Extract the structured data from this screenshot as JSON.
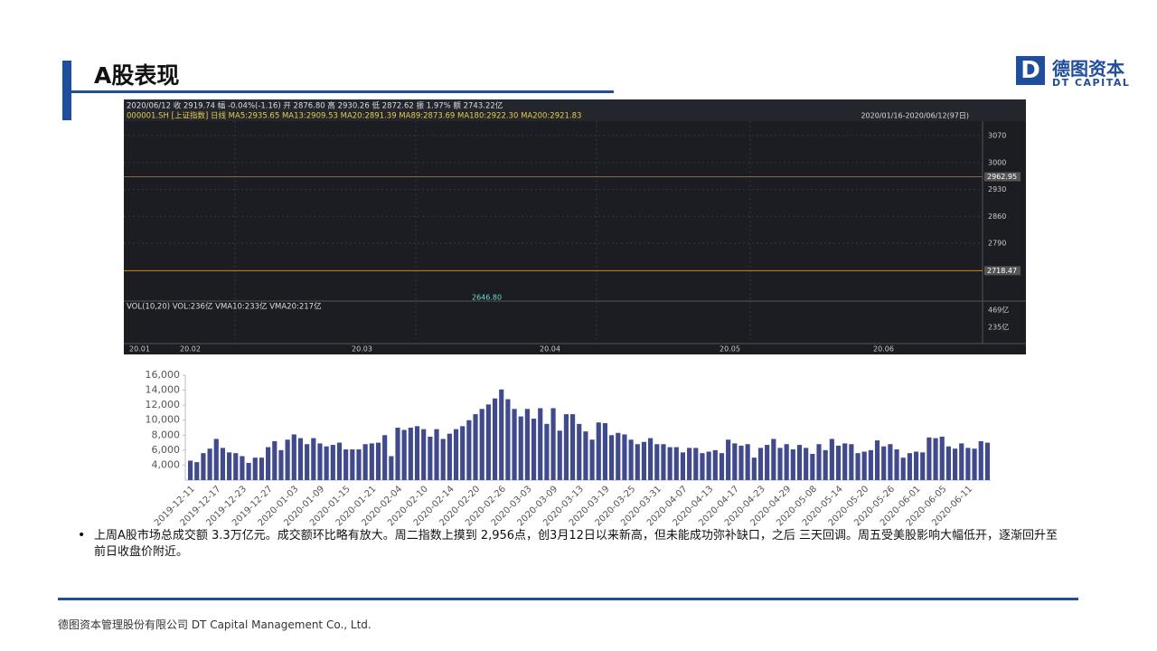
{
  "header": {
    "title": "A股表现",
    "logo_cn": "德图资本",
    "logo_en": "DT CAPITAL"
  },
  "kline_panel": {
    "quote": "2020/06/12 收 2919.74 幅 -0.04%(-1.16) 开 2876.80 高 2930.26 低 2872.62 振 1.97% 额 2743.22亿",
    "ma_line": "000001.SH [上证指数] 日线 MA5:2935.65 MA13:2909.53 MA20:2891.39 MA89:2873.69 MA180:2922.30 MA200:2921.83",
    "range": "2020/01/16-2020/06/12(97日)",
    "price_ticks": [
      3070,
      3000,
      2930,
      2860,
      2790
    ],
    "levels": [
      {
        "value": 2962.95,
        "label": "2962.95"
      },
      {
        "value": 2718.47,
        "label": "2718.47"
      }
    ],
    "low_label": "2646.80",
    "vol_line": "VOL(10,20) VOL:236亿 VMA10:233亿 VMA20:217亿",
    "vol_ticks": [
      "469亿",
      "235亿"
    ],
    "dates": [
      "20.01",
      "20.02",
      "20.03",
      "20.04",
      "20.05",
      "20.06"
    ]
  },
  "chart_data": {
    "type": "bar",
    "color": "#404a8c",
    "categories": [
      "2019-12-11",
      null,
      null,
      null,
      "2019-12-17",
      null,
      null,
      null,
      "2019-12-23",
      null,
      null,
      null,
      "2019-12-27",
      null,
      null,
      null,
      "2020-01-03",
      null,
      null,
      null,
      "2020-01-09",
      null,
      null,
      null,
      "2020-01-15",
      null,
      null,
      null,
      "2020-01-21",
      null,
      null,
      null,
      "2020-02-04",
      null,
      null,
      null,
      "2020-02-10",
      null,
      null,
      null,
      "2020-02-14",
      null,
      null,
      null,
      "2020-02-20",
      null,
      null,
      null,
      "2020-02-26",
      null,
      null,
      null,
      "2020-03-03",
      null,
      null,
      null,
      "2020-03-09",
      null,
      null,
      null,
      "2020-03-13",
      null,
      null,
      null,
      "2020-03-19",
      null,
      null,
      null,
      "2020-03-25",
      null,
      null,
      null,
      "2020-03-31",
      null,
      null,
      null,
      "2020-04-07",
      null,
      null,
      null,
      "2020-04-13",
      null,
      null,
      null,
      "2020-04-17",
      null,
      null,
      null,
      "2020-04-23",
      null,
      null,
      null,
      "2020-04-29",
      null,
      null,
      null,
      "2020-05-08",
      null,
      null,
      null,
      "2020-05-14",
      null,
      null,
      null,
      "2020-05-20",
      null,
      null,
      null,
      "2020-05-26",
      null,
      null,
      null,
      "2020-06-01",
      null,
      null,
      null,
      "2020-06-05",
      null,
      null,
      null,
      "2020-06-11",
      null,
      null,
      null
    ],
    "values": [
      4600,
      4400,
      5600,
      6200,
      7500,
      6300,
      5700,
      5600,
      5200,
      4300,
      5000,
      5000,
      6400,
      7200,
      6000,
      7400,
      8100,
      7600,
      6800,
      7600,
      6900,
      6500,
      6700,
      7000,
      6100,
      6100,
      6100,
      6800,
      6900,
      7000,
      8000,
      5200,
      9000,
      8700,
      9000,
      9200,
      8800,
      7800,
      8800,
      7500,
      8200,
      8800,
      9200,
      10000,
      10800,
      11500,
      12100,
      12900,
      14100,
      12800,
      11500,
      10500,
      11500,
      10200,
      11600,
      9500,
      11600,
      8600,
      10800,
      10800,
      9500,
      8500,
      7400,
      9700,
      9600,
      8000,
      8300,
      8100,
      7400,
      6800,
      7100,
      7600,
      6800,
      6800,
      6400,
      6400,
      5700,
      6300,
      6300,
      5600,
      5800,
      6000,
      5600,
      7400,
      6900,
      6600,
      6800,
      5000,
      6300,
      6700,
      7500,
      6300,
      6800,
      6100,
      6700,
      6300,
      5500,
      6800,
      6000,
      7500,
      6600,
      6900,
      6800,
      5600,
      5800,
      6000,
      7300,
      6500,
      6800,
      6100,
      5000,
      5600,
      5800,
      5700,
      7700,
      7600,
      7800,
      6500,
      6200,
      6900,
      6300,
      6200,
      7200,
      7000
    ],
    "ylim": [
      2000,
      16000
    ],
    "yticks": [
      {
        "value": 4000,
        "label": "4,000"
      },
      {
        "value": 6000,
        "label": "6,000"
      },
      {
        "value": 8000,
        "label": "8,000"
      },
      {
        "value": 10000,
        "label": "10,000"
      },
      {
        "value": 12000,
        "label": "12,000"
      },
      {
        "value": 14000,
        "label": "14,000"
      },
      {
        "value": 16000,
        "label": "16,000"
      }
    ]
  },
  "body": {
    "bullet": "上周A股市场总成交额 3.3万亿元。成交额环比略有放大。周二指数上摸到 2,956点，创3月12日以来新高，但未能成功弥补缺口，之后 三天回调。周五受美股影响大幅低开，逐渐回升至前日收盘价附近。"
  },
  "footer": {
    "text": "德图资本管理股份有限公司 DT Capital Management Co., Ltd."
  }
}
